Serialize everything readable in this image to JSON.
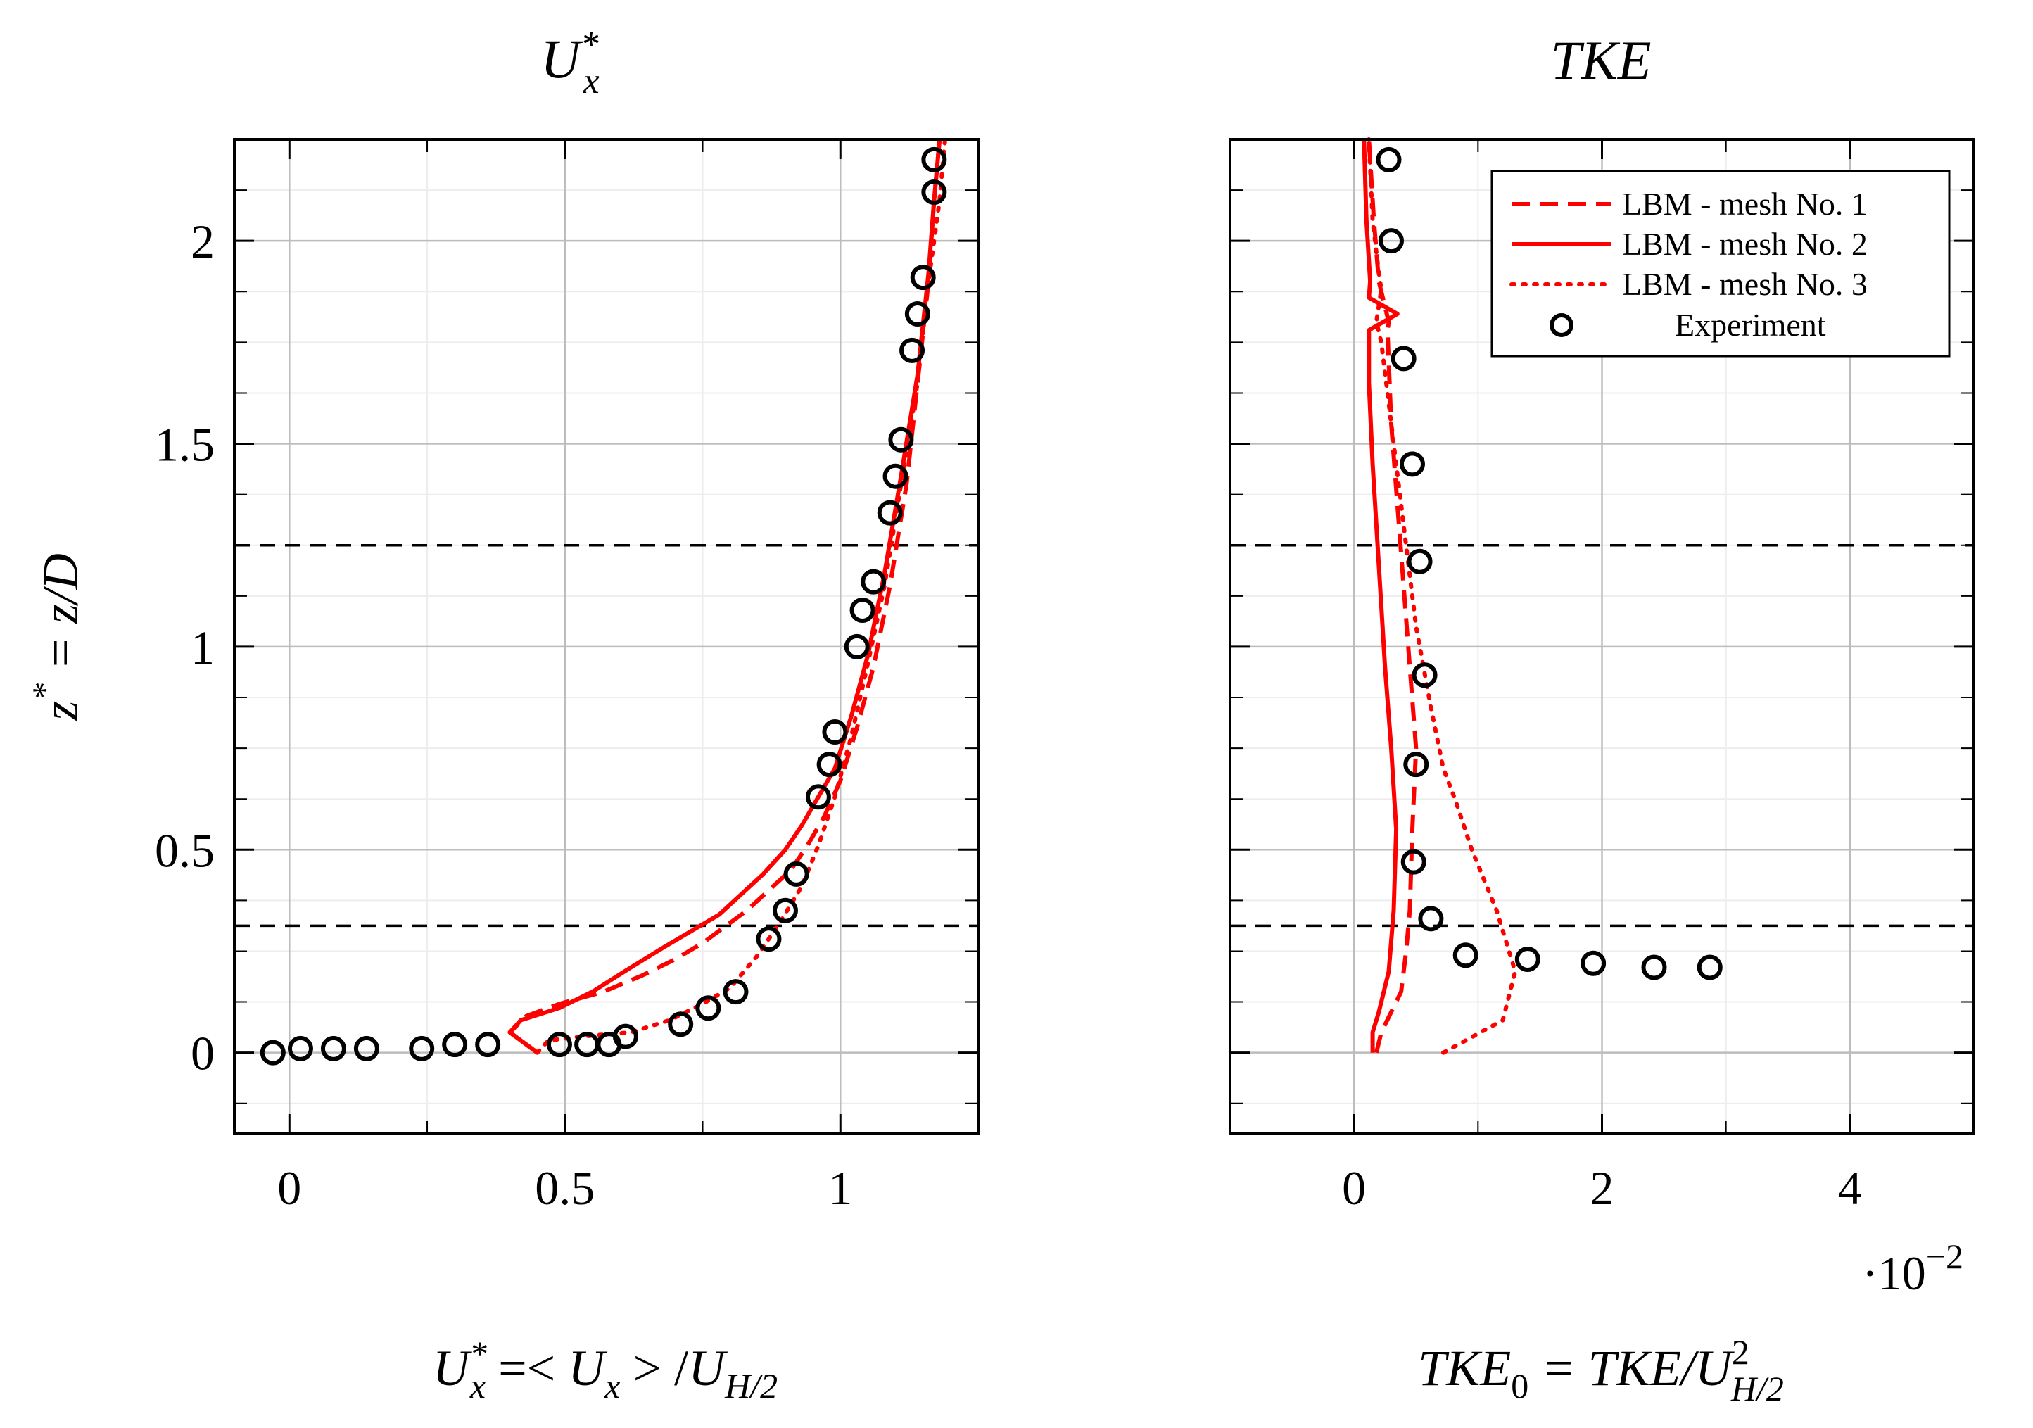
{
  "chart_data": [
    {
      "type": "line",
      "id": "ux",
      "title": "U*x",
      "title_main": "U",
      "title_sup": "*",
      "title_sub": "x",
      "xlabel": "U*x =< Ux > /U H/2",
      "xlabel_parts": {
        "a": "U",
        "a_sup": "*",
        "a_sub": "x",
        "b": " =< ",
        "c": "U",
        "c_sub": "x",
        "d": " > /",
        "e": "U",
        "e_sub": "H/2"
      },
      "ylabel": "z* = z/D",
      "ylabel_parts": {
        "a": "z",
        "a_sup": "*",
        "b": " = z/D"
      },
      "xlim": [
        -0.1,
        1.25
      ],
      "ylim": [
        -0.2,
        2.25
      ],
      "xticks": [
        0,
        0.5,
        1
      ],
      "xtick_labels": [
        "0",
        "0.5",
        "1"
      ],
      "yticks": [
        0,
        0.5,
        1,
        1.5,
        2
      ],
      "ytick_labels": [
        "0",
        "0.5",
        "1",
        "1.5",
        "2"
      ],
      "hlines": [
        0.3125,
        1.25
      ],
      "grid": true,
      "series": [
        {
          "name": "LBM - mesh No. 1",
          "style": "dashed",
          "color": "#ff0000",
          "x": [
            0.45,
            0.4,
            0.43,
            0.49,
            0.57,
            0.64,
            0.7,
            0.75,
            0.79,
            0.83,
            0.87,
            0.91,
            0.94,
            0.97,
            1.0,
            1.03,
            1.06,
            1.09,
            1.12,
            1.14,
            1.16,
            1.17,
            1.18
          ],
          "y": [
            0.0,
            0.05,
            0.09,
            0.12,
            0.15,
            0.19,
            0.23,
            0.27,
            0.31,
            0.35,
            0.4,
            0.45,
            0.51,
            0.58,
            0.67,
            0.8,
            0.95,
            1.15,
            1.4,
            1.65,
            1.9,
            2.1,
            2.25
          ]
        },
        {
          "name": "LBM - mesh No. 2",
          "style": "solid",
          "color": "#ff0000",
          "x": [
            0.45,
            0.4,
            0.42,
            0.49,
            0.55,
            0.62,
            0.68,
            0.73,
            0.78,
            0.82,
            0.86,
            0.9,
            0.93,
            0.96,
            0.99,
            1.02,
            1.05,
            1.08,
            1.11,
            1.14,
            1.16,
            1.17,
            1.18
          ],
          "y": [
            0.0,
            0.05,
            0.08,
            0.11,
            0.15,
            0.21,
            0.26,
            0.3,
            0.34,
            0.39,
            0.44,
            0.5,
            0.56,
            0.63,
            0.7,
            0.83,
            0.98,
            1.18,
            1.42,
            1.67,
            1.92,
            2.1,
            2.25
          ]
        },
        {
          "name": "LBM - mesh No. 3",
          "style": "dotted",
          "color": "#ff0000",
          "x": [
            0.45,
            0.47,
            0.53,
            0.62,
            0.69,
            0.75,
            0.8,
            0.85,
            0.89,
            0.93,
            0.96,
            0.99,
            1.02,
            1.05,
            1.08,
            1.11,
            1.14,
            1.16,
            1.18,
            1.19
          ],
          "y": [
            0.0,
            0.03,
            0.04,
            0.05,
            0.08,
            0.12,
            0.16,
            0.24,
            0.32,
            0.41,
            0.51,
            0.63,
            0.78,
            0.96,
            1.15,
            1.4,
            1.65,
            1.9,
            2.1,
            2.25
          ]
        },
        {
          "name": "Experiment",
          "style": "markers",
          "color": "#000000",
          "x": [
            -0.03,
            0.02,
            0.08,
            0.14,
            0.24,
            0.3,
            0.36,
            0.49,
            0.54,
            0.58,
            0.61,
            0.71,
            0.76,
            0.81,
            0.87,
            0.9,
            0.92,
            0.96,
            0.98,
            0.99,
            1.03,
            1.04,
            1.06,
            1.09,
            1.1,
            1.11,
            1.13,
            1.14,
            1.15,
            1.17,
            1.17
          ],
          "y": [
            0.0,
            0.01,
            0.01,
            0.01,
            0.01,
            0.02,
            0.02,
            0.02,
            0.02,
            0.02,
            0.04,
            0.07,
            0.11,
            0.15,
            0.28,
            0.35,
            0.44,
            0.63,
            0.71,
            0.79,
            1.0,
            1.09,
            1.16,
            1.33,
            1.42,
            1.51,
            1.73,
            1.82,
            1.91,
            2.12,
            2.2
          ]
        }
      ]
    },
    {
      "type": "line",
      "id": "tke",
      "title": "TKE",
      "xlabel": "TKE0 = TKE/U2 H/2",
      "xlabel_parts": {
        "a": "TKE",
        "a_sub": "0",
        "b": " = TKE/",
        "c": "U",
        "c_sup": "2",
        "c_sub": "H/2"
      },
      "x_scale_label": "·10",
      "x_scale_exp": "−2",
      "xlim": [
        -1,
        5
      ],
      "ylim": [
        -0.2,
        2.25
      ],
      "xticks": [
        0,
        2,
        4
      ],
      "xtick_labels": [
        "0",
        "2",
        "4"
      ],
      "yticks": [
        0,
        0.5,
        1,
        1.5,
        2
      ],
      "hlines": [
        0.3125,
        1.25
      ],
      "grid": true,
      "legend_position": "top-right",
      "series": [
        {
          "name": "LBM - mesh No. 1",
          "style": "dashed",
          "color": "#ff0000",
          "x": [
            0.18,
            0.22,
            0.38,
            0.42,
            0.45,
            0.47,
            0.5,
            0.45,
            0.4,
            0.35,
            0.3,
            0.28,
            0.27,
            0.28,
            0.24,
            0.2,
            0.16,
            0.12
          ],
          "y": [
            0.0,
            0.05,
            0.15,
            0.25,
            0.35,
            0.55,
            0.75,
            0.95,
            1.15,
            1.35,
            1.55,
            1.7,
            1.78,
            1.8,
            1.85,
            1.9,
            2.05,
            2.25
          ]
        },
        {
          "name": "LBM - mesh No. 2",
          "style": "solid",
          "color": "#ff0000",
          "x": [
            0.15,
            0.15,
            0.2,
            0.28,
            0.32,
            0.34,
            0.3,
            0.25,
            0.2,
            0.15,
            0.12,
            0.12,
            0.35,
            0.12,
            0.13,
            0.1,
            0.08
          ],
          "y": [
            0.0,
            0.05,
            0.1,
            0.2,
            0.35,
            0.55,
            0.75,
            0.95,
            1.2,
            1.45,
            1.65,
            1.78,
            1.82,
            1.86,
            1.9,
            2.05,
            2.25
          ]
        },
        {
          "name": "LBM - mesh No. 3",
          "style": "dotted",
          "color": "#ff0000",
          "x": [
            0.72,
            1.2,
            1.3,
            1.15,
            0.95,
            0.82,
            0.72,
            0.62,
            0.5,
            0.4,
            0.3,
            0.22,
            0.18,
            0.22,
            0.2,
            0.15,
            0.12
          ],
          "y": [
            0.0,
            0.08,
            0.2,
            0.35,
            0.5,
            0.62,
            0.7,
            0.85,
            1.05,
            1.3,
            1.55,
            1.75,
            1.8,
            1.88,
            1.92,
            2.05,
            2.25
          ]
        },
        {
          "name": "Experiment",
          "style": "markers",
          "color": "#000000",
          "x": [
            0.28,
            0.3,
            0.4,
            0.47,
            0.53,
            0.57,
            0.5,
            0.48,
            0.62,
            0.9,
            1.4,
            1.93,
            2.42,
            2.87
          ],
          "y": [
            2.2,
            2.0,
            1.71,
            1.45,
            1.21,
            0.93,
            0.71,
            0.47,
            0.33,
            0.24,
            0.23,
            0.22,
            0.21,
            0.21
          ]
        }
      ],
      "legend": [
        "LBM - mesh No. 1",
        "LBM - mesh No. 2",
        "LBM - mesh No. 3",
        "Experiment"
      ]
    }
  ]
}
